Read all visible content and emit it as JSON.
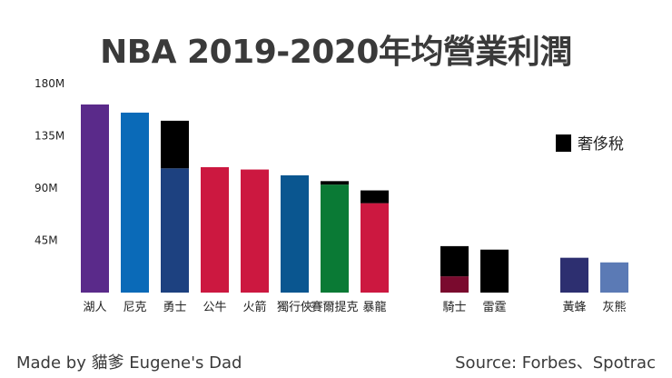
{
  "chart_data": {
    "type": "bar",
    "title": "NBA 2019-2020年均營業利潤",
    "xlabel": "",
    "ylabel": "",
    "ylim": [
      0,
      180
    ],
    "y_ticks": [
      "45M",
      "90M",
      "135M",
      "180M"
    ],
    "y_tick_values": [
      45,
      90,
      135,
      180
    ],
    "categories": [
      "湖人",
      "尼克",
      "勇士",
      "公牛",
      "火箭",
      "獨行俠",
      "賽爾提克",
      "暴龍",
      "騎士",
      "雷霆",
      "黃蜂",
      "灰熊"
    ],
    "groups": [
      [
        "湖人",
        "尼克",
        "勇士",
        "公牛",
        "火箭",
        "獨行俠",
        "賽爾提克",
        "暴龍"
      ],
      [
        "騎士",
        "雷霆"
      ],
      [
        "黃蜂",
        "灰熊"
      ]
    ],
    "colors": [
      "#5a2a8a",
      "#0a6ab8",
      "#1d4180",
      "#cc1840",
      "#cc1840",
      "#0a5690",
      "#0a7a35",
      "#cc1840",
      "#7a0a2e",
      "#111111",
      "#2d2f70",
      "#5b7ab5"
    ],
    "series": [
      {
        "name": "營業利潤",
        "values": [
          162,
          155,
          107,
          108,
          106,
          101,
          93,
          77,
          14,
          0,
          30,
          26
        ]
      },
      {
        "name": "奢侈稅",
        "values": [
          0,
          0,
          41,
          0,
          0,
          0,
          3,
          11,
          26,
          37,
          0,
          0
        ]
      }
    ],
    "legend": {
      "label": "奢侈稅",
      "color": "#000000",
      "position": "right"
    },
    "grid": false
  },
  "footer": {
    "credit": "Made by 貓爹 Eugene's Dad",
    "source": "Source: Forbes、Spotrac"
  }
}
